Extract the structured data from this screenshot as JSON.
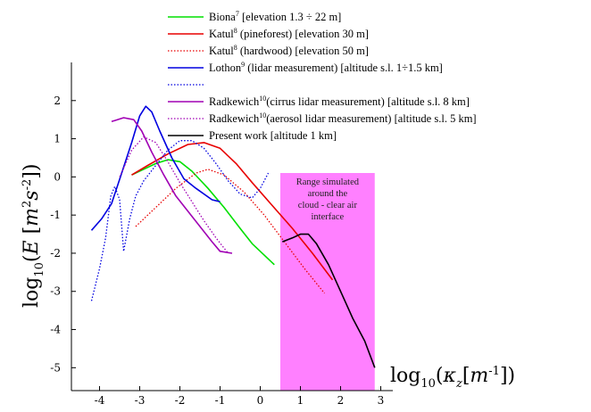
{
  "chart_data": {
    "type": "line",
    "xlabel": "log10(κz[m-1])",
    "ylabel": "log10(E [m2s-2])",
    "x_ticks": [
      "-4",
      "-3",
      "-2",
      "-1",
      "0",
      "1",
      "2",
      "3"
    ],
    "y_ticks": [
      "2",
      "1",
      "0",
      "-1",
      "-2",
      "-3",
      "-4",
      "-5"
    ],
    "xlim": [
      -4.7,
      3.3
    ],
    "ylim": [
      -5.6,
      3.0
    ],
    "grid": false,
    "legend_position": "top",
    "highlight_band": {
      "x_range": [
        0.5,
        2.85
      ],
      "color": "#ff80ff",
      "label_lines": [
        "Range simulated",
        "around the",
        "cloud - clear air",
        "interface"
      ]
    },
    "series": [
      {
        "name_parts": [
          "Biona",
          "7",
          " [elevation 1.3 ÷ 22 m]"
        ],
        "color": "#00e000",
        "dash": "solid",
        "x": [
          -3.2,
          -2.9,
          -2.6,
          -2.3,
          -2.0,
          -1.7,
          -1.3,
          -0.9,
          -0.5,
          -0.2,
          0.35
        ],
        "y": [
          0.05,
          0.2,
          0.35,
          0.45,
          0.4,
          0.15,
          -0.3,
          -0.8,
          -1.35,
          -1.75,
          -2.3
        ]
      },
      {
        "name_parts": [
          "Katul",
          "8",
          " (pineforest) [elevation 30 m]"
        ],
        "color": "#e80000",
        "dash": "solid",
        "x": [
          -3.2,
          -2.8,
          -2.3,
          -1.8,
          -1.4,
          -1.0,
          -0.6,
          -0.2,
          0.3,
          0.8,
          1.3,
          1.8
        ],
        "y": [
          0.05,
          0.3,
          0.6,
          0.85,
          0.9,
          0.75,
          0.35,
          -0.15,
          -0.75,
          -1.35,
          -2.0,
          -2.7
        ]
      },
      {
        "name_parts": [
          "Katul",
          "8",
          " (hardwood) [elevation 50 m]"
        ],
        "color": "#e80000",
        "dash": "dotted",
        "x": [
          -3.1,
          -2.6,
          -2.1,
          -1.6,
          -1.3,
          -0.9,
          -0.4,
          0.1,
          0.6,
          1.1,
          1.6
        ],
        "y": [
          -1.3,
          -0.8,
          -0.3,
          0.1,
          0.2,
          0.05,
          -0.4,
          -1.0,
          -1.7,
          -2.4,
          -3.05
        ]
      },
      {
        "name_parts": [
          "Lothon",
          "9",
          " (lidar measurement) [altitude s.l. 1÷1.5 km]"
        ],
        "color": "#0000e0",
        "dash": "solid",
        "x": [
          -4.2,
          -3.95,
          -3.7,
          -3.45,
          -3.2,
          -3.0,
          -2.85,
          -2.7,
          -2.5,
          -2.2,
          -1.9,
          -1.6,
          -1.2,
          -1.0
        ],
        "y": [
          -1.4,
          -1.1,
          -0.7,
          0.1,
          0.9,
          1.6,
          1.85,
          1.7,
          1.2,
          0.5,
          -0.05,
          -0.3,
          -0.6,
          -0.65
        ]
      },
      {
        "name_parts": [
          "",
          "",
          ""
        ],
        "color": "#0000e0",
        "dash": "dotted",
        "x": [
          -4.2,
          -4.0,
          -3.85,
          -3.72,
          -3.62,
          -3.5,
          -3.4,
          -3.25,
          -3.1,
          -2.9,
          -2.6,
          -2.3,
          -2.0,
          -1.7,
          -1.4,
          -1.1,
          -0.8,
          -0.5,
          -0.2,
          0.0,
          0.2
        ],
        "y": [
          -3.25,
          -2.4,
          -1.6,
          -0.5,
          -0.25,
          -0.6,
          -1.95,
          -1.1,
          -0.5,
          -0.1,
          0.3,
          0.7,
          0.95,
          0.95,
          0.75,
          0.35,
          -0.1,
          -0.45,
          -0.55,
          -0.3,
          0.1
        ]
      },
      {
        "name_parts": [
          "Radkewich",
          "10",
          "(cirrus lidar measurement) [altitude s.l. 8 km]"
        ],
        "color": "#a000b4",
        "dash": "solid",
        "x": [
          -3.7,
          -3.4,
          -3.15,
          -2.95,
          -2.7,
          -2.4,
          -2.1,
          -1.8,
          -1.5,
          -1.2,
          -1.0,
          -0.7
        ],
        "y": [
          1.45,
          1.55,
          1.5,
          1.2,
          0.65,
          0.05,
          -0.5,
          -0.9,
          -1.3,
          -1.7,
          -1.95,
          -2.0
        ]
      },
      {
        "name_parts": [
          "Radkewich",
          "10",
          "(aerosol lidar measurement) [altitude s.l. 5 km]"
        ],
        "color": "#a000b4",
        "dash": "dotted",
        "x": [
          -3.5,
          -3.2,
          -2.9,
          -2.6,
          -2.3,
          -2.0,
          -1.7,
          -1.4,
          -1.1,
          -0.8
        ],
        "y": [
          0.0,
          0.7,
          1.05,
          0.9,
          0.4,
          -0.15,
          -0.65,
          -1.15,
          -1.6,
          -2.0
        ]
      },
      {
        "name_parts": [
          "Present work [altitude 1 km]",
          "",
          ""
        ],
        "color": "#000000",
        "dash": "solid",
        "x": [
          0.55,
          0.8,
          1.0,
          1.2,
          1.4,
          1.7,
          2.0,
          2.3,
          2.6,
          2.85
        ],
        "y": [
          -1.7,
          -1.6,
          -1.5,
          -1.5,
          -1.75,
          -2.3,
          -3.0,
          -3.7,
          -4.3,
          -5.0
        ]
      }
    ]
  }
}
